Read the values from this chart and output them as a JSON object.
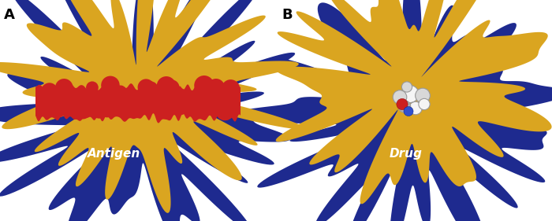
{
  "background_color": "#ffffff",
  "panel_A_label": "A",
  "panel_B_label": "B",
  "label_A_text": "Antigen",
  "label_B_text": "Drug",
  "label_fontsize": 11,
  "panel_label_fontsize": 13,
  "colors": {
    "gold": "#DAA520",
    "gold_light": "#E8B830",
    "blue_dark": "#1E2A8F",
    "blue_mid": "#2535A8",
    "red": "#CC2020",
    "red_light": "#DD3333",
    "white": "#F5F5F5",
    "light_gray": "#D8D8D8",
    "mid_gray": "#B0B0B0"
  },
  "figsize": [
    7.0,
    2.81
  ],
  "dpi": 100
}
